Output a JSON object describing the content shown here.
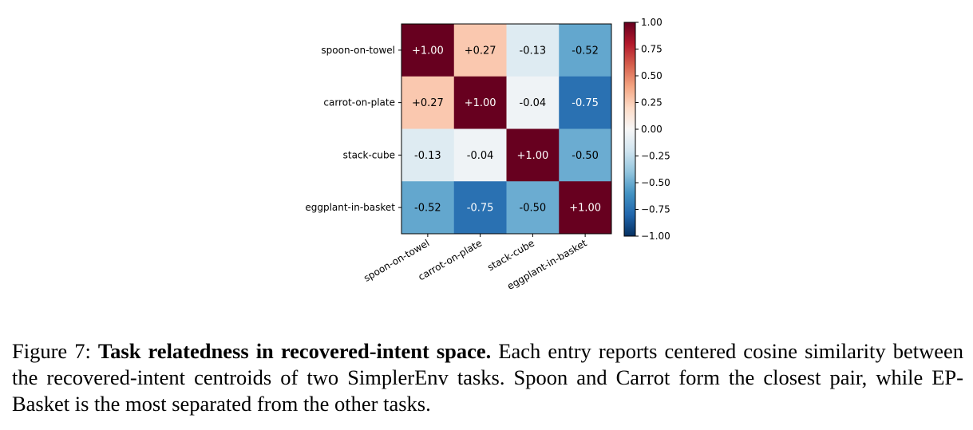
{
  "chart_data": {
    "type": "heatmap",
    "title": "",
    "xlabel": "",
    "ylabel": "",
    "rows": [
      "spoon-on-towel",
      "carrot-on-plate",
      "stack-cube",
      "eggplant-in-basket"
    ],
    "columns": [
      "spoon-on-towel",
      "carrot-on-plate",
      "stack-cube",
      "eggplant-in-basket"
    ],
    "values": [
      [
        1.0,
        0.27,
        -0.13,
        -0.52
      ],
      [
        0.27,
        1.0,
        -0.04,
        -0.75
      ],
      [
        -0.13,
        -0.04,
        1.0,
        -0.5
      ],
      [
        -0.52,
        -0.75,
        -0.5,
        1.0
      ]
    ],
    "cell_labels": [
      [
        "+1.00",
        "+0.27",
        "-0.13",
        "-0.52"
      ],
      [
        "+0.27",
        "+1.00",
        "-0.04",
        "-0.75"
      ],
      [
        "-0.13",
        "-0.04",
        "+1.00",
        "-0.50"
      ],
      [
        "-0.52",
        "-0.75",
        "-0.50",
        "+1.00"
      ]
    ],
    "colormap": "RdBu_r",
    "vmin": -1.0,
    "vmax": 1.0,
    "colorbar_ticks": [
      1.0,
      0.75,
      0.5,
      0.25,
      0.0,
      -0.25,
      -0.5,
      -0.75,
      -1.0
    ],
    "colorbar_tick_labels": [
      "1.00",
      "0.75",
      "0.50",
      "0.25",
      "0.00",
      "−0.25",
      "−0.50",
      "−0.75",
      "−1.00"
    ],
    "colorbar_placement": "right"
  },
  "caption": {
    "figure_label": "Figure 7:",
    "bold_title": "Task relatedness in recovered-intent space.",
    "body": "Each entry reports centered cosine similarity between the recovered-intent centroids of two SimplerEnv tasks. Spoon and Carrot form the closest pair, while EP-Basket is the most separated from the other tasks."
  }
}
